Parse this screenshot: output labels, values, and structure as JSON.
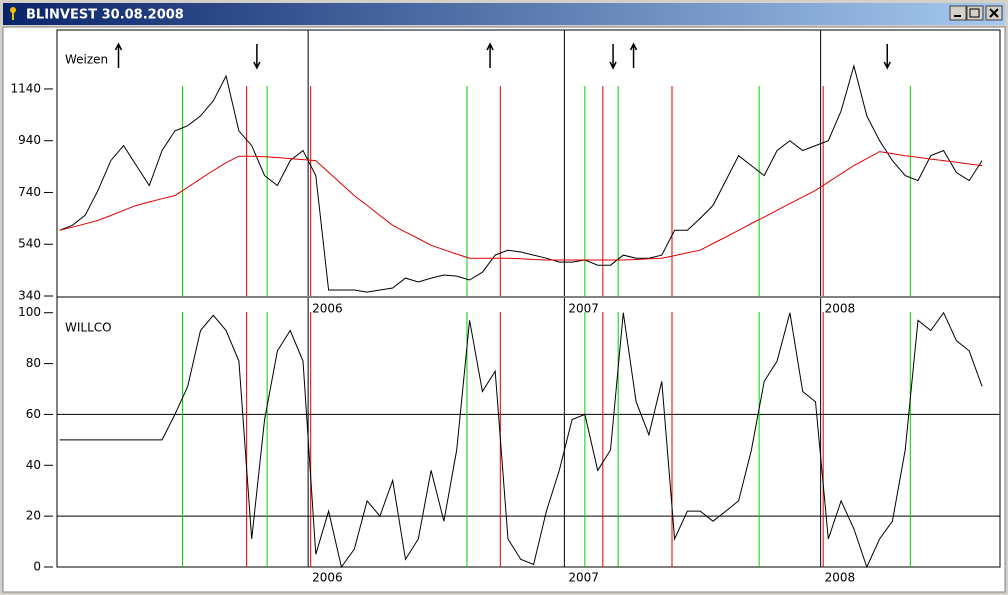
{
  "window": {
    "title": "BLINVEST  30.08.2008"
  },
  "chart_data": [
    {
      "type": "line",
      "title": "Weizen",
      "x": [
        2005.03,
        2005.08,
        2005.13,
        2005.18,
        2005.23,
        2005.28,
        2005.33,
        2005.38,
        2005.43,
        2005.48,
        2005.53,
        2005.58,
        2005.63,
        2005.68,
        2005.73,
        2005.78,
        2005.83,
        2005.88,
        2005.93,
        2005.98,
        2006.03,
        2006.08,
        2006.13,
        2006.18,
        2006.23,
        2006.28,
        2006.33,
        2006.38,
        2006.43,
        2006.48,
        2006.53,
        2006.58,
        2006.63,
        2006.68,
        2006.73,
        2006.78,
        2006.83,
        2006.88,
        2006.93,
        2006.98,
        2007.03,
        2007.08,
        2007.13,
        2007.18,
        2007.23,
        2007.28,
        2007.33,
        2007.38,
        2007.43,
        2007.48,
        2007.53,
        2007.58,
        2007.63,
        2007.68,
        2007.73,
        2007.78,
        2007.83,
        2007.88,
        2007.93,
        2007.98,
        2008.03,
        2008.08,
        2008.13,
        2008.18,
        2008.23,
        2008.28,
        2008.33,
        2008.38,
        2008.43,
        2008.48,
        2008.53,
        2008.58,
        2008.63
      ],
      "series": [
        {
          "color": "#000000",
          "values": [
            594,
            613,
            652,
            748,
            863,
            921,
            844,
            767,
            902,
            978,
            998,
            1036,
            1094,
            1190,
            978,
            921,
            805,
            767,
            863,
            902,
            805,
            363,
            363,
            363,
            355,
            363,
            371,
            409,
            394,
            409,
            421,
            417,
            402,
            432,
            498,
            517,
            510,
            498,
            486,
            471,
            471,
            479,
            459,
            459,
            498,
            486,
            486,
            498,
            594,
            594,
            640,
            690,
            786,
            882,
            844,
            805,
            902,
            940,
            902,
            921,
            940,
            1055,
            1229,
            1036,
            940,
            863,
            805,
            786,
            882,
            902,
            817,
            786,
            863
          ]
        },
        {
          "color": "#e00000",
          "values": [
            594,
            606,
            619,
            632,
            651,
            671,
            690,
            703,
            716,
            728,
            760,
            793,
            825,
            855,
            880,
            880,
            878,
            875,
            871,
            867,
            863,
            818,
            773,
            728,
            690,
            651,
            613,
            587,
            562,
            536,
            519,
            502,
            486,
            486,
            486,
            486,
            484,
            481,
            479,
            479,
            479,
            479,
            479,
            479,
            479,
            481,
            484,
            486,
            496,
            507,
            517,
            543,
            568,
            594,
            620,
            645,
            671,
            697,
            722,
            748,
            780,
            812,
            844,
            871,
            898,
            890,
            882,
            876,
            869,
            863,
            857,
            850,
            844
          ]
        }
      ],
      "xlim": [
        2005.02,
        2008.7
      ],
      "xticks": [
        2006,
        2007,
        2008
      ],
      "ylim": [
        340,
        1360
      ],
      "yticks": [
        340,
        540,
        740,
        940,
        1140
      ],
      "buy_signals": {
        "color": "#00d000",
        "x": [
          2005.51,
          2005.84,
          2006.62,
          2007.08,
          2007.21,
          2007.76,
          2008.35
        ]
      },
      "sell_signals": {
        "color": "#e00000",
        "x": [
          2005.76,
          2006.01,
          2006.75,
          2007.15,
          2007.42,
          2008.01
        ]
      },
      "up_arrows": [
        2005.26,
        2006.71,
        2007.27
      ],
      "down_arrows": [
        2005.8,
        2007.19,
        2008.26
      ]
    },
    {
      "type": "line",
      "title": "WILLCO",
      "x": [
        2005.03,
        2005.08,
        2005.13,
        2005.18,
        2005.23,
        2005.28,
        2005.33,
        2005.38,
        2005.43,
        2005.48,
        2005.53,
        2005.58,
        2005.63,
        2005.68,
        2005.73,
        2005.78,
        2005.83,
        2005.88,
        2005.93,
        2005.98,
        2006.03,
        2006.08,
        2006.13,
        2006.18,
        2006.23,
        2006.28,
        2006.33,
        2006.38,
        2006.43,
        2006.48,
        2006.53,
        2006.58,
        2006.63,
        2006.68,
        2006.73,
        2006.78,
        2006.83,
        2006.88,
        2006.93,
        2006.98,
        2007.03,
        2007.08,
        2007.13,
        2007.18,
        2007.23,
        2007.28,
        2007.33,
        2007.38,
        2007.43,
        2007.48,
        2007.53,
        2007.58,
        2007.63,
        2007.68,
        2007.73,
        2007.78,
        2007.83,
        2007.88,
        2007.93,
        2007.98,
        2008.03,
        2008.08,
        2008.13,
        2008.18,
        2008.23,
        2008.28,
        2008.33,
        2008.38,
        2008.43,
        2008.48,
        2008.53,
        2008.58,
        2008.63
      ],
      "series": [
        {
          "color": "#000000",
          "values": [
            50,
            50,
            50,
            50,
            50,
            50,
            50,
            50,
            50,
            60,
            71,
            93,
            99,
            93,
            81,
            11,
            58,
            85,
            93,
            81,
            5,
            22,
            0,
            7,
            26,
            20,
            34,
            3,
            11,
            38,
            18,
            46,
            97,
            69,
            77,
            11,
            3,
            1,
            22,
            38,
            58,
            60,
            38,
            46,
            100,
            65,
            52,
            73,
            11,
            22,
            22,
            18,
            22,
            26,
            46,
            73,
            81,
            100,
            69,
            65,
            11,
            26,
            15,
            0,
            11,
            18,
            46,
            97,
            93,
            100,
            89,
            85,
            71
          ]
        }
      ],
      "xlim": [
        2005.02,
        2008.7
      ],
      "xticks": [
        2006,
        2007,
        2008
      ],
      "ylim": [
        0,
        105
      ],
      "yticks": [
        0,
        20,
        40,
        60,
        80,
        100
      ],
      "levels": [
        20,
        60
      ],
      "buy_signals": {
        "color": "#00d000",
        "x": [
          2005.51,
          2005.84,
          2006.62,
          2007.08,
          2007.21,
          2007.76,
          2008.35
        ]
      },
      "sell_signals": {
        "color": "#e00000",
        "x": [
          2005.76,
          2006.01,
          2006.75,
          2007.15,
          2007.42,
          2008.01
        ]
      }
    }
  ]
}
